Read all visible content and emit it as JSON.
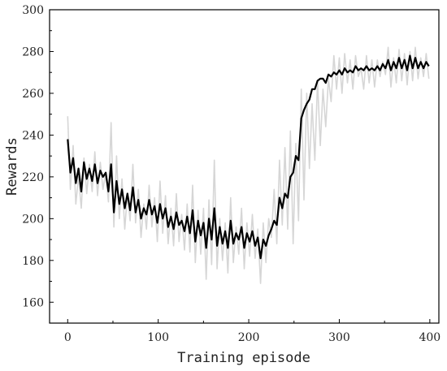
{
  "chart_data": {
    "type": "line",
    "title": "",
    "xlabel": "Training episode",
    "ylabel": "Rewards",
    "xlim": [
      -20,
      410
    ],
    "ylim": [
      150,
      300
    ],
    "xticks": [
      0,
      100,
      200,
      300,
      400
    ],
    "yticks": [
      160,
      180,
      200,
      220,
      240,
      260,
      280,
      300
    ],
    "grid": false,
    "legend": "none",
    "series": [
      {
        "style": "raw-noisy",
        "color": "#d6d6d6",
        "x": [
          0,
          3,
          6,
          9,
          12,
          15,
          18,
          21,
          24,
          27,
          30,
          33,
          36,
          39,
          42,
          45,
          48,
          51,
          54,
          57,
          60,
          63,
          66,
          69,
          72,
          75,
          78,
          81,
          84,
          87,
          90,
          93,
          96,
          99,
          102,
          105,
          108,
          111,
          114,
          117,
          120,
          123,
          126,
          129,
          132,
          135,
          138,
          141,
          144,
          147,
          150,
          153,
          156,
          159,
          162,
          165,
          168,
          171,
          174,
          177,
          180,
          183,
          186,
          189,
          192,
          195,
          198,
          201,
          204,
          207,
          210,
          213,
          216,
          219,
          222,
          225,
          228,
          231,
          234,
          237,
          240,
          243,
          246,
          249,
          252,
          255,
          258,
          261,
          264,
          267,
          270,
          273,
          276,
          279,
          282,
          285,
          288,
          291,
          294,
          297,
          300,
          303,
          306,
          309,
          312,
          315,
          318,
          321,
          324,
          327,
          330,
          333,
          336,
          339,
          342,
          345,
          348,
          351,
          354,
          357,
          360,
          363,
          366,
          369,
          372,
          375,
          378,
          381,
          384,
          387,
          390,
          393,
          396,
          399
        ],
        "values": [
          249,
          214,
          235,
          207,
          220,
          205,
          229,
          212,
          226,
          213,
          232,
          211,
          227,
          214,
          222,
          208,
          246,
          196,
          230,
          200,
          219,
          195,
          212,
          199,
          226,
          198,
          214,
          191,
          207,
          195,
          216,
          196,
          210,
          189,
          218,
          193,
          211,
          188,
          205,
          187,
          212,
          189,
          202,
          185,
          207,
          184,
          216,
          179,
          204,
          183,
          205,
          171,
          209,
          178,
          228,
          176,
          200,
          180,
          198,
          174,
          210,
          179,
          196,
          183,
          205,
          176,
          198,
          182,
          202,
          181,
          195,
          169,
          198,
          179,
          200,
          191,
          214,
          188,
          228,
          197,
          234,
          195,
          242,
          188,
          236,
          199,
          262,
          209,
          260,
          224,
          255,
          228,
          266,
          235,
          262,
          244,
          267,
          256,
          278,
          262,
          277,
          260,
          279,
          265,
          276,
          262,
          278,
          268,
          272,
          262,
          278,
          265,
          276,
          263,
          276,
          268,
          275,
          269,
          282,
          263,
          277,
          265,
          281,
          266,
          279,
          264,
          280,
          266,
          282,
          267,
          277,
          268,
          279,
          267
        ]
      },
      {
        "style": "smoothed",
        "color": "#000000",
        "x": [
          0,
          3,
          6,
          9,
          12,
          15,
          18,
          21,
          24,
          27,
          30,
          33,
          36,
          39,
          42,
          45,
          48,
          51,
          54,
          57,
          60,
          63,
          66,
          69,
          72,
          75,
          78,
          81,
          84,
          87,
          90,
          93,
          96,
          99,
          102,
          105,
          108,
          111,
          114,
          117,
          120,
          123,
          126,
          129,
          132,
          135,
          138,
          141,
          144,
          147,
          150,
          153,
          156,
          159,
          162,
          165,
          168,
          171,
          174,
          177,
          180,
          183,
          186,
          189,
          192,
          195,
          198,
          201,
          204,
          207,
          210,
          213,
          216,
          219,
          222,
          225,
          228,
          231,
          234,
          237,
          240,
          243,
          246,
          249,
          252,
          255,
          258,
          261,
          264,
          267,
          270,
          273,
          276,
          279,
          282,
          285,
          288,
          291,
          294,
          297,
          300,
          303,
          306,
          309,
          312,
          315,
          318,
          321,
          324,
          327,
          330,
          333,
          336,
          339,
          342,
          345,
          348,
          351,
          354,
          357,
          360,
          363,
          366,
          369,
          372,
          375,
          378,
          381,
          384,
          387,
          390,
          393,
          396,
          399
        ],
        "values": [
          238,
          222,
          229,
          217,
          224,
          213,
          227,
          219,
          224,
          218,
          226,
          217,
          223,
          220,
          222,
          213,
          226,
          203,
          218,
          207,
          214,
          205,
          212,
          204,
          215,
          203,
          209,
          200,
          205,
          202,
          209,
          202,
          206,
          198,
          207,
          200,
          205,
          196,
          201,
          195,
          203,
          197,
          199,
          194,
          201,
          193,
          204,
          189,
          199,
          192,
          198,
          186,
          200,
          190,
          205,
          187,
          196,
          188,
          194,
          186,
          199,
          188,
          193,
          190,
          196,
          186,
          193,
          189,
          194,
          187,
          191,
          181,
          190,
          187,
          192,
          195,
          199,
          197,
          210,
          205,
          212,
          210,
          220,
          222,
          230,
          228,
          248,
          252,
          255,
          257,
          262,
          262,
          266,
          267,
          267,
          265,
          269,
          268,
          270,
          269,
          271,
          269,
          272,
          270,
          271,
          270,
          273,
          271,
          272,
          271,
          273,
          271,
          272,
          271,
          273,
          271,
          274,
          272,
          276,
          271,
          275,
          272,
          277,
          272,
          276,
          271,
          278,
          272,
          277,
          272,
          275,
          272,
          275,
          273
        ]
      }
    ]
  }
}
